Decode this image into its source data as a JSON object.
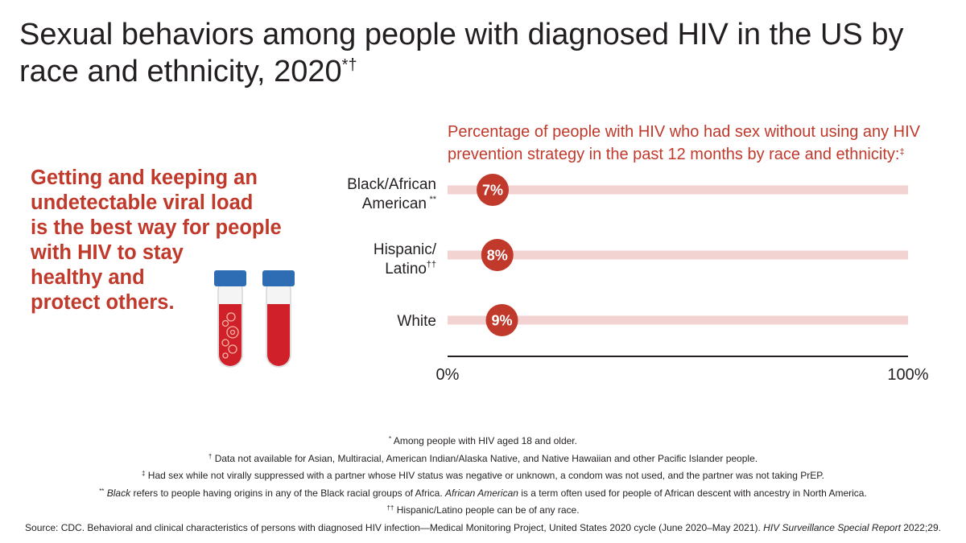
{
  "title": {
    "text": "Sexual behaviors among people with diagnosed HIV in the US by race and ethnicity, 2020",
    "marks": "*†"
  },
  "message": {
    "lines": [
      "Getting and keeping an",
      "undetectable viral load",
      "is the best way for people",
      "with HIV to stay",
      "healthy and",
      "protect others."
    ]
  },
  "colors": {
    "accent": "#c0392b",
    "track": "#f2d3d1",
    "text": "#231f20",
    "tube_cap": "#2e6db4",
    "tube_blood": "#d0202a"
  },
  "chart_data": {
    "type": "bar",
    "title": "Percentage of people with HIV who had sex without using any HIV prevention strategy in the past 12 months by race and ethnicity:",
    "title_mark": "‡",
    "categories": [
      {
        "label": "Black/African",
        "label2": "American",
        "mark": "**"
      },
      {
        "label": "Hispanic/",
        "label2": "Latino",
        "mark": "††"
      },
      {
        "label": "White",
        "label2": "",
        "mark": ""
      }
    ],
    "values": [
      7,
      8,
      9
    ],
    "data_labels": [
      "7%",
      "8%",
      "9%"
    ],
    "xlim": [
      0,
      100
    ],
    "tick_labels": [
      "0%",
      "100%"
    ],
    "xlabel": "",
    "ylabel": ""
  },
  "footnotes": {
    "f1": {
      "mark": "*",
      "text": " Among people with HIV aged 18 and older."
    },
    "f2": {
      "mark": "†",
      "text": " Data not available for Asian, Multiracial, American Indian/Alaska Native, and Native Hawaiian and other Pacific Islander people."
    },
    "f3": {
      "mark": "‡",
      "text": " Had sex while not virally suppressed with a partner whose HIV status was negative or unknown, a condom was not used, and the partner was not taking PrEP."
    },
    "f4": {
      "mark": "**",
      "italic1": "Black",
      "text1": " refers to people having origins in any of the Black racial groups of Africa. ",
      "italic2": "African American",
      "text2": " is a term often used for people of African descent with ancestry in North America."
    },
    "f5": {
      "mark": "††",
      "text": " Hispanic/Latino people can be of any race."
    },
    "source": {
      "text": "Source: CDC. Behavioral and clinical characteristics of persons with diagnosed HIV infection—Medical Monitoring Project, United States 2020 cycle (June 2020–May 2021). ",
      "italic": "HIV Surveillance Special Report",
      "text2": " 2022;29."
    }
  }
}
